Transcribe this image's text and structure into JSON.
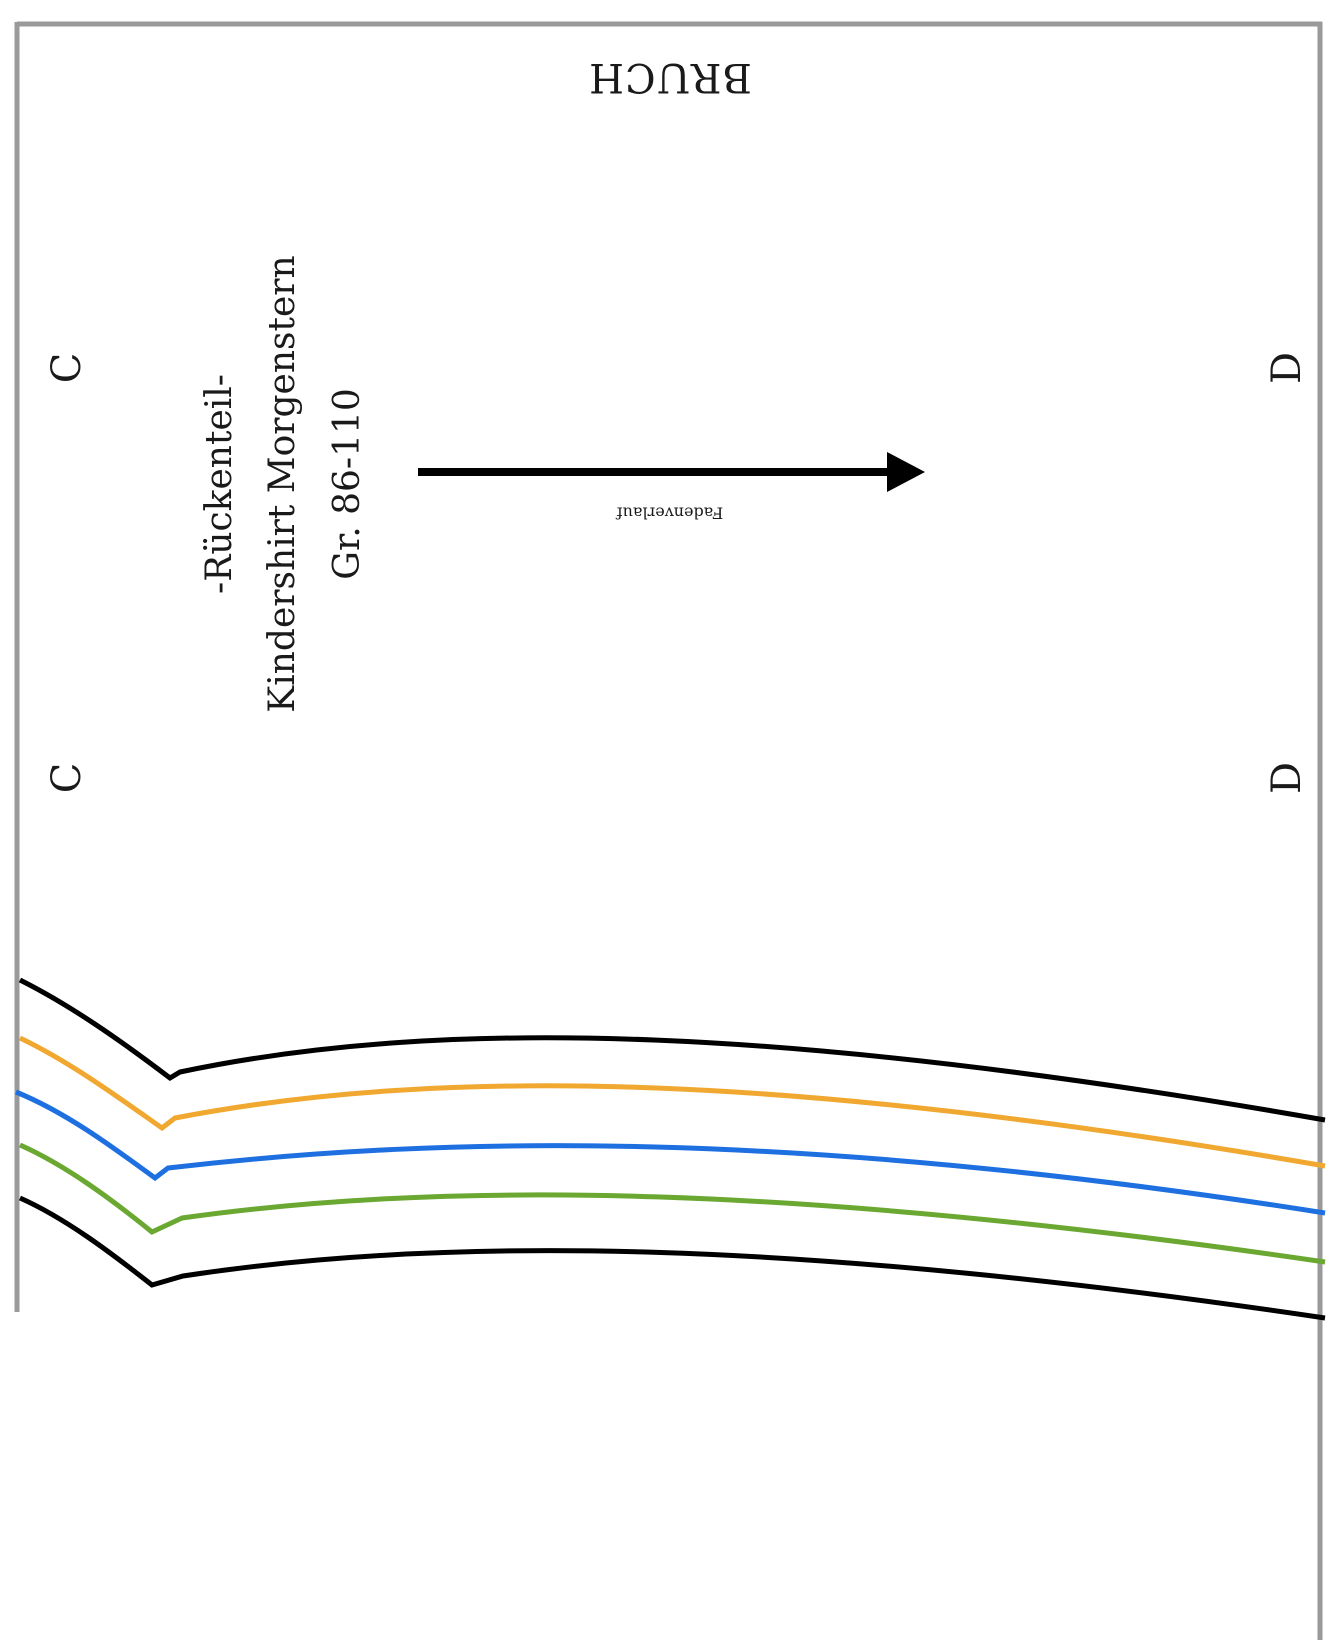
{
  "fold": {
    "label": "BRUCH"
  },
  "title": {
    "line1": "-Rückenteil-",
    "line2": "Kindershirt Morgenstern",
    "line3": "Gr. 86-110"
  },
  "grainline": {
    "label": "Fadenverlauf"
  },
  "marks": {
    "c_top": "C",
    "c_bottom": "C",
    "d_top": "D",
    "d_bottom": "D"
  },
  "size_lines": [
    {
      "color": "#000000"
    },
    {
      "color": "#f0a830"
    },
    {
      "color": "#1e6fe0"
    },
    {
      "color": "#6aa832"
    },
    {
      "color": "#000000"
    }
  ],
  "colors": {
    "border": "#9a9a9a",
    "arrow": "#000000"
  }
}
